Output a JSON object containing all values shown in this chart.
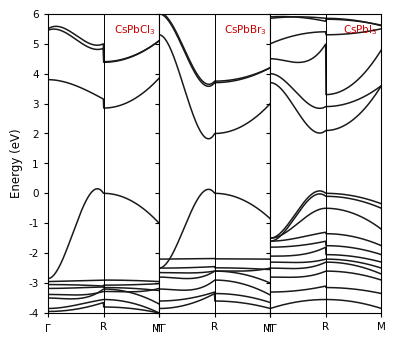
{
  "panels": [
    {
      "label": "CsPbCl$_3$"
    },
    {
      "label": "CsPbBr$_3$"
    },
    {
      "label": "CsPbI$_3$"
    }
  ],
  "ylabel": "Energy (eV)",
  "ylim": [
    -4,
    6
  ],
  "yticks": [
    -4,
    -3,
    -2,
    -1,
    0,
    1,
    2,
    3,
    4,
    5,
    6
  ],
  "label_color": "#cc0000",
  "line_color": "#1a1a1a",
  "line_width": 1.1,
  "bg_color": "#ffffff",
  "figsize": [
    3.9,
    3.38
  ],
  "dpi": 100
}
